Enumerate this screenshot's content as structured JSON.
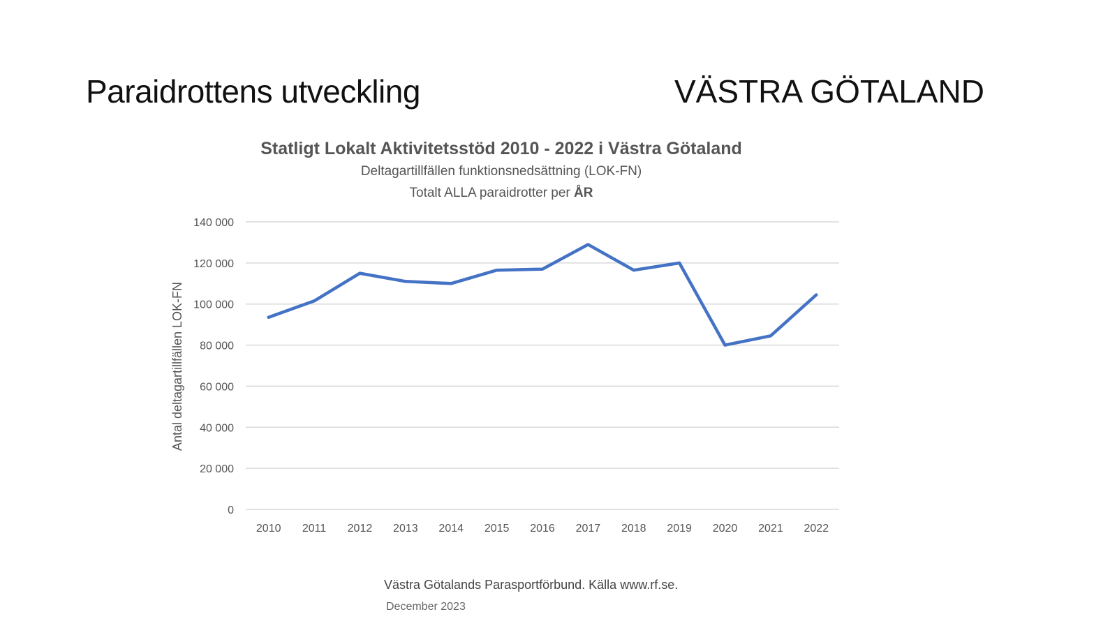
{
  "slide": {
    "title": "Paraidrottens utveckling",
    "region": "VÄSTRA GÖTALAND",
    "source": "Västra Götalands Parasportförbund. Källa www.rf.se.",
    "date": "December 2023"
  },
  "chart_data": {
    "type": "line",
    "title": "Statligt Lokalt Aktivitetsstöd 2010 - 2022 i Västra Götaland",
    "subtitle_line1": "Deltagartillfällen funktionsnedsättning (LOK-FN)",
    "subtitle_line2_prefix": "Totalt ALLA paraidrotter per ",
    "subtitle_line2_bold": "ÅR",
    "xlabel": "",
    "ylabel": "Antal deltagartillfällen LOK-FN",
    "categories": [
      "2010",
      "2011",
      "2012",
      "2013",
      "2014",
      "2015",
      "2016",
      "2017",
      "2018",
      "2019",
      "2020",
      "2021",
      "2022"
    ],
    "series": [
      {
        "values": [
          93500,
          101500,
          115000,
          111000,
          110000,
          116500,
          117000,
          129000,
          116500,
          120000,
          80000,
          84500,
          104500
        ],
        "color": "#4472C4"
      }
    ],
    "ylim": [
      0,
      140000
    ],
    "yticks": [
      0,
      20000,
      40000,
      60000,
      80000,
      100000,
      120000,
      140000
    ],
    "ytick_labels": [
      "0",
      "20 000",
      "40 000",
      "60 000",
      "80 000",
      "100 000",
      "120 000",
      "140 000"
    ],
    "grid": true,
    "legend": "none"
  }
}
